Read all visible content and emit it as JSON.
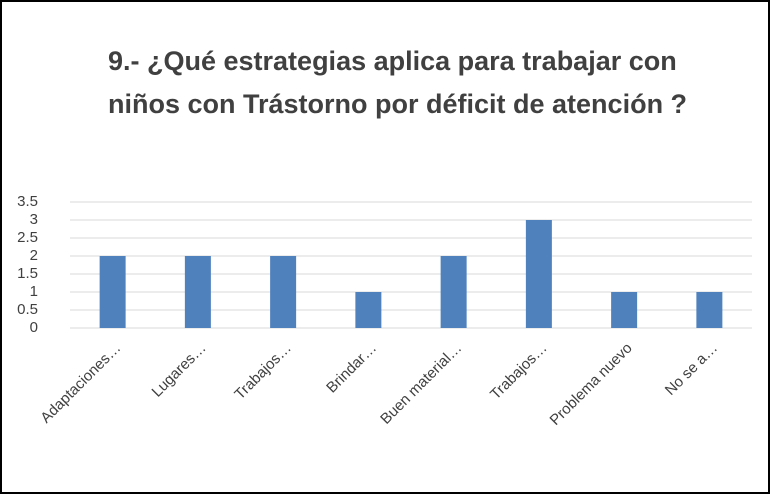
{
  "chart_data": {
    "type": "bar",
    "title": "9.- ¿Qué estrategias aplica para trabajar con niños con  Trástorno por déficit de atención ?",
    "categories": [
      "Adaptaciones…",
      "Lugares…",
      "Trabajos…",
      "Brindar…",
      "Buen material…",
      "Trabajos…",
      "Problema nuevo",
      "No se  a…"
    ],
    "values": [
      2,
      2,
      2,
      1,
      2,
      3,
      1,
      1
    ],
    "color": "#4f81bd",
    "ylim": [
      0,
      3.5
    ],
    "yticks": [
      0,
      0.5,
      1,
      1.5,
      2,
      2.5,
      3,
      3.5
    ],
    "grid": true
  }
}
